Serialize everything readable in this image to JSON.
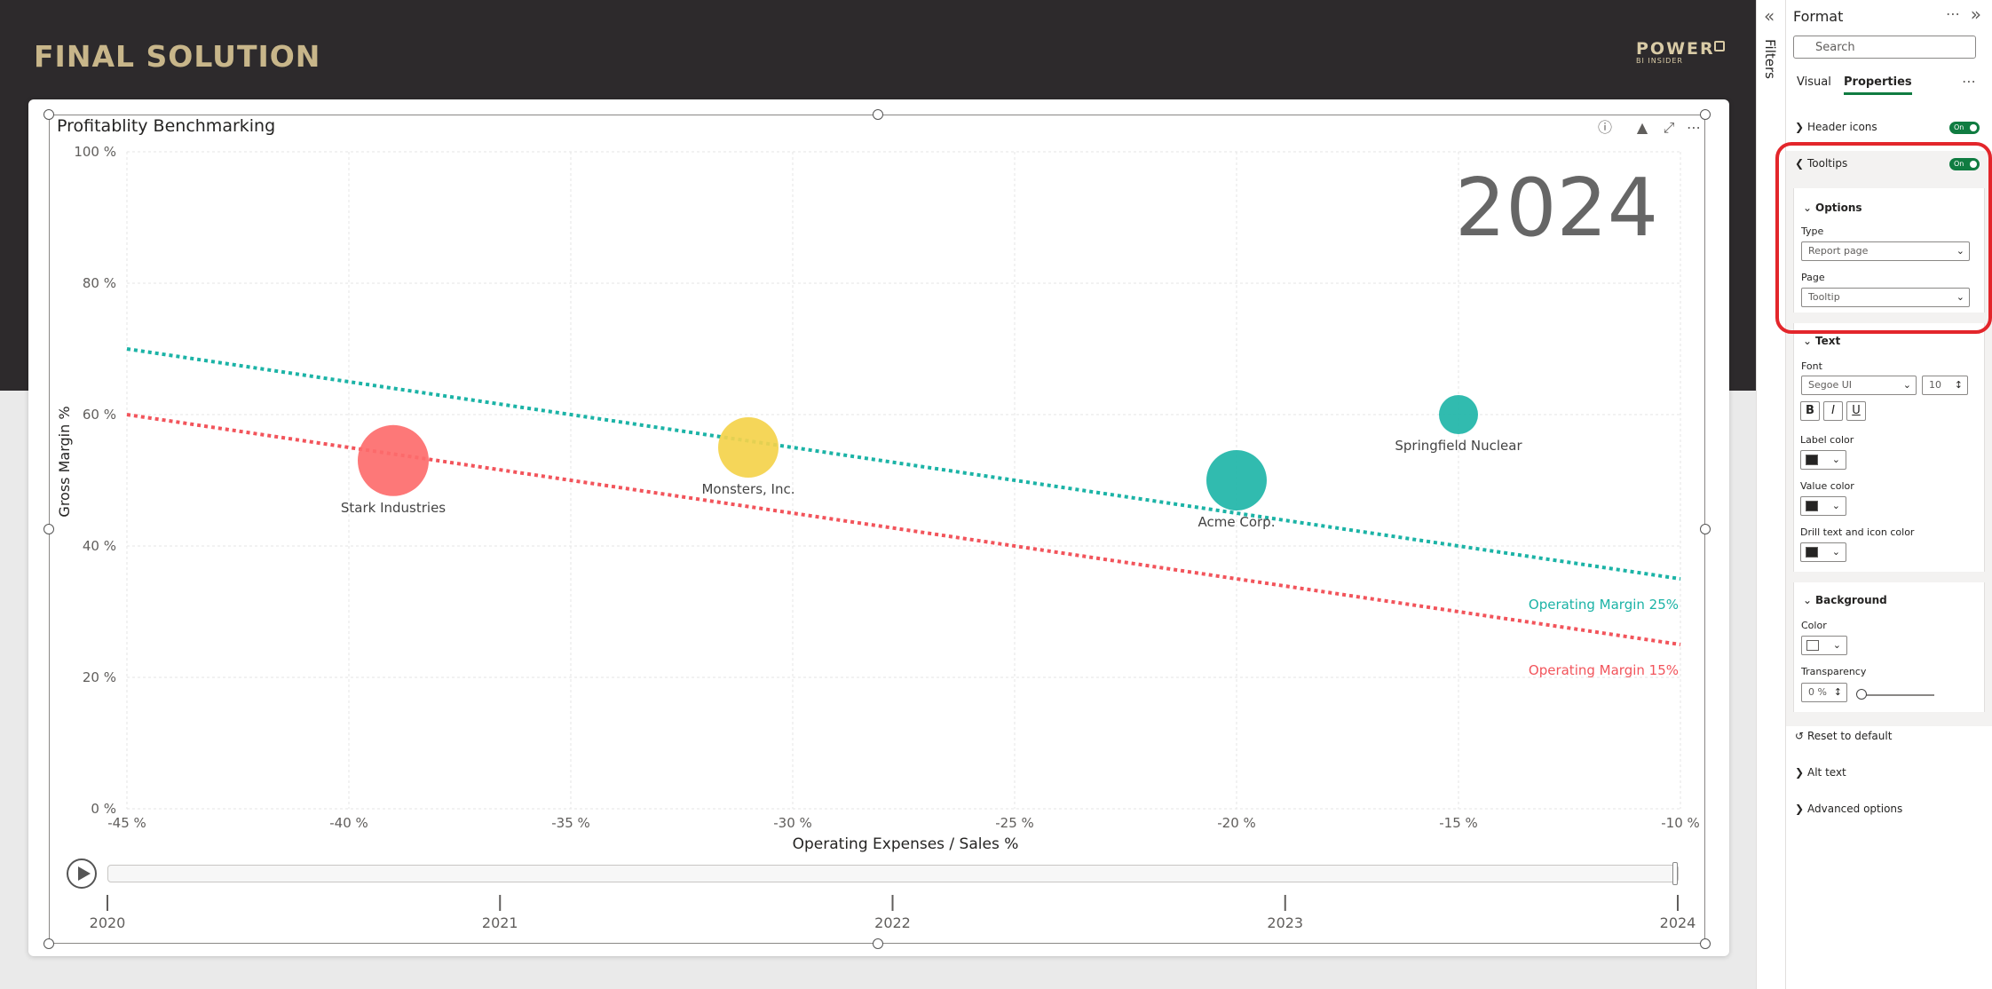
{
  "report": {
    "title": "FINAL SOLUTION",
    "logo_main": "POWER",
    "logo_sub": "BI INSIDER"
  },
  "visual": {
    "title": "Profitablity Benchmarking",
    "header_icons": [
      "help-icon",
      "filter-icon",
      "focus-mode-icon",
      "more-options-icon"
    ]
  },
  "chart_data": {
    "type": "scatter",
    "xlabel": "Operating Expenses / Sales %",
    "ylabel": "Gross Margin %",
    "xlim": [
      -45,
      -10
    ],
    "ylim": [
      0,
      100
    ],
    "x_ticks": [
      -45,
      -40,
      -35,
      -30,
      -25,
      -20,
      -15,
      -10
    ],
    "x_tick_labels": [
      "-45 %",
      "-40 %",
      "-35 %",
      "-30 %",
      "-25 %",
      "-20 %",
      "-15 %",
      "-10 %"
    ],
    "y_ticks": [
      0,
      20,
      40,
      60,
      80,
      100
    ],
    "y_tick_labels": [
      "0 %",
      "20 %",
      "40 %",
      "60 %",
      "80 %",
      "100 %"
    ],
    "grid": true,
    "play_axis_value": "2024",
    "points": [
      {
        "label": "Stark Industries",
        "x": -39,
        "y": 53,
        "size": 40,
        "color": "#fd6c6c"
      },
      {
        "label": "Monsters, Inc.",
        "x": -31,
        "y": 55,
        "size": 34,
        "color": "#f4d34b"
      },
      {
        "label": "Acme Corp.",
        "x": -20,
        "y": 50,
        "size": 34,
        "color": "#20b5a8"
      },
      {
        "label": "Springfield Nuclear",
        "x": -15,
        "y": 60,
        "size": 22,
        "color": "#20b5a8"
      }
    ],
    "reference_lines": [
      {
        "name": "Operating Margin 25%",
        "x": [
          -45,
          -10
        ],
        "y": [
          70,
          35
        ],
        "color": "#1bb3a6"
      },
      {
        "name": "Operating Margin 15%",
        "x": [
          -45,
          -10
        ],
        "y": [
          60,
          25
        ],
        "color": "#f2545b"
      }
    ]
  },
  "timeline": {
    "years": [
      "2020",
      "2021",
      "2022",
      "2023",
      "2024"
    ]
  },
  "filters_pane": {
    "label": "Filters"
  },
  "format_pane": {
    "title": "Format",
    "search_placeholder": "Search",
    "tabs": [
      "Visual",
      "Properties"
    ],
    "header_icons": {
      "label": "Header icons",
      "toggle": "On"
    },
    "tooltips": {
      "label": "Tooltips",
      "toggle": "On"
    },
    "options": {
      "label": "Options",
      "type_label": "Type",
      "type_value": "Report page",
      "page_label": "Page",
      "page_value": "Tooltip"
    },
    "text": {
      "label": "Text",
      "font_label": "Font",
      "font_value": "Segoe UI",
      "size_value": "10",
      "bold": "B",
      "italic": "I",
      "underline": "U",
      "label_color": "Label color",
      "value_color": "Value color",
      "drill_color": "Drill text and icon color"
    },
    "background": {
      "label": "Background",
      "color_label": "Color",
      "transparency_label": "Transparency",
      "transparency_value": "0 %"
    },
    "reset": "Reset to default",
    "alt_text": "Alt text",
    "advanced": "Advanced options"
  }
}
